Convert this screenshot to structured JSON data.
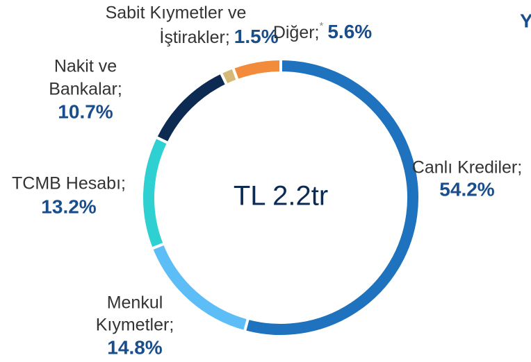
{
  "chart_data": {
    "type": "donut",
    "center_label": "TL 2.2tr",
    "side_text": "Y",
    "categories": [
      [
        "Canlı Krediler;"
      ],
      [
        "Menkul",
        "Kıymetler;"
      ],
      [
        "TCMB Hesabı;"
      ],
      [
        "Nakit ve",
        "Bankalar;"
      ],
      [
        "Sabit Kıymetler ve",
        "İştirakler;"
      ],
      [
        "Diğer;"
      ]
    ],
    "values": [
      54.2,
      14.8,
      13.2,
      10.7,
      1.5,
      5.6
    ],
    "value_labels": [
      "54.2%",
      "14.8%",
      "13.2%",
      "10.7%",
      "1.5%",
      "5.6%"
    ],
    "note_marks": [
      null,
      null,
      null,
      null,
      null,
      "*"
    ],
    "colors": [
      "#1f72bd",
      "#5dbdf6",
      "#2fd0d2",
      "#0c2a52",
      "#d5b977",
      "#f28b3c"
    ]
  }
}
